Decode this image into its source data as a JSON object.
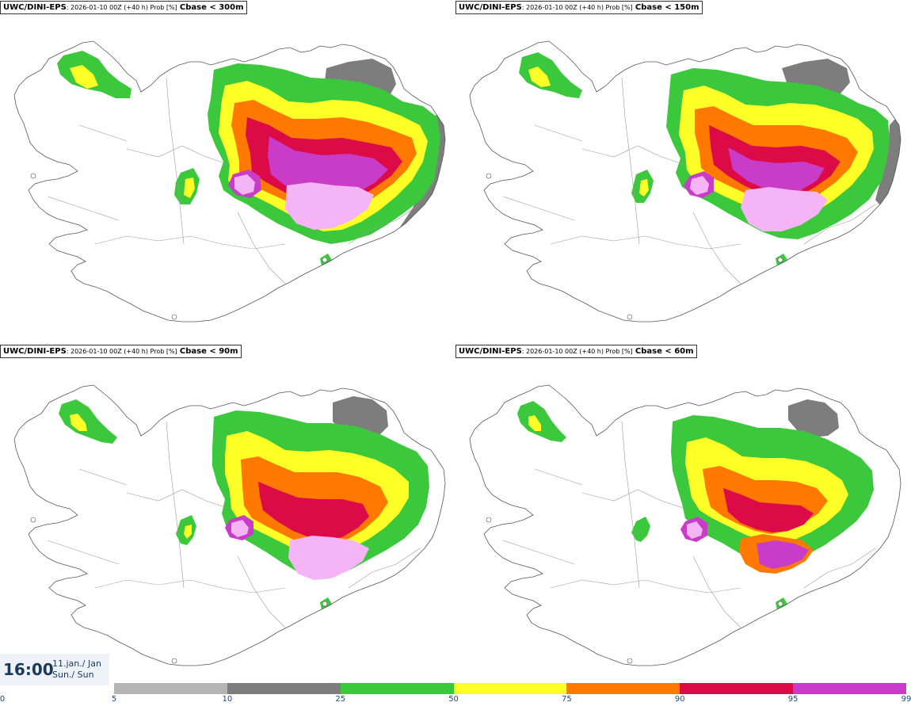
{
  "panels": [
    {
      "model": "UWC/DINI-EPS",
      "run": ": 2026-01-10 00Z (+40 h) Prob [%]",
      "param": "Cbase < 300m"
    },
    {
      "model": "UWC/DINI-EPS",
      "run": ": 2026-01-10 00Z (+40 h) Prob [%]",
      "param": "Cbase < 150m"
    },
    {
      "model": "UWC/DINI-EPS",
      "run": ": 2026-01-10 00Z (+40 h) Prob [%]",
      "param": "Cbase < 90m"
    },
    {
      "model": "UWC/DINI-EPS",
      "run": ": 2026-01-10 00Z (+40 h) Prob [%]",
      "param": "Cbase < 60m"
    }
  ],
  "valid_time": {
    "time": "16:00",
    "date_line1": "11.jan./ Jan",
    "date_line2": "Sun./ Sun"
  },
  "legend": {
    "ticks": [
      "0",
      "5",
      "10",
      "25",
      "50",
      "75",
      "90",
      "95",
      "99"
    ],
    "colors": [
      "#ffffff",
      "#b4b4b4",
      "#7d7d7d",
      "#3cc83c",
      "#ffff28",
      "#ff7800",
      "#dc0a46",
      "#c83cc8",
      "#f5b4f5"
    ]
  }
}
